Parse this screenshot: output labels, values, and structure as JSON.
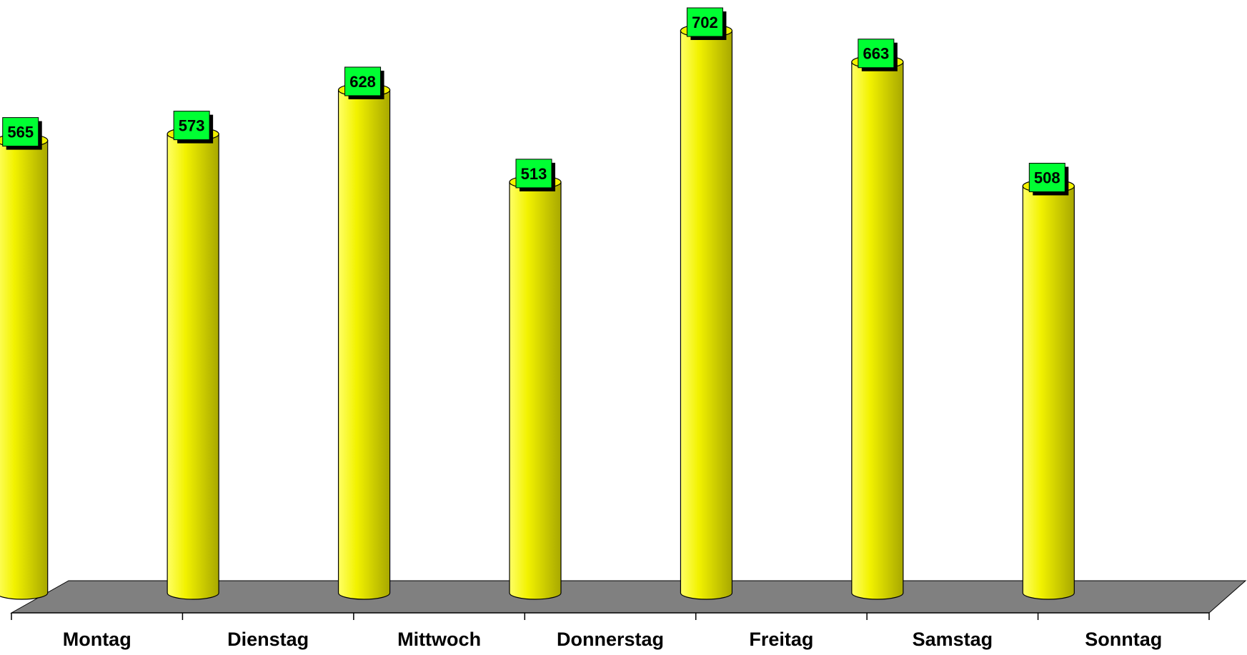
{
  "chart_data": {
    "type": "bar",
    "style": "3d-cylinder",
    "categories": [
      "Montag",
      "Dienstag",
      "Mittwoch",
      "Donnerstag",
      "Freitag",
      "Samstag",
      "Sonntag"
    ],
    "values": [
      565,
      573,
      628,
      513,
      702,
      663,
      508
    ],
    "title": "",
    "xlabel": "",
    "ylabel": "",
    "ylim": [
      0,
      702
    ],
    "grid": false,
    "legend": "none",
    "data_labels": true,
    "colors": {
      "bar_light": "#ffff66",
      "bar_mid": "#f2f200",
      "bar_dark": "#a8a800",
      "floor": "#808080",
      "label_box": "#00ff33",
      "label_shadow": "#000000"
    }
  }
}
